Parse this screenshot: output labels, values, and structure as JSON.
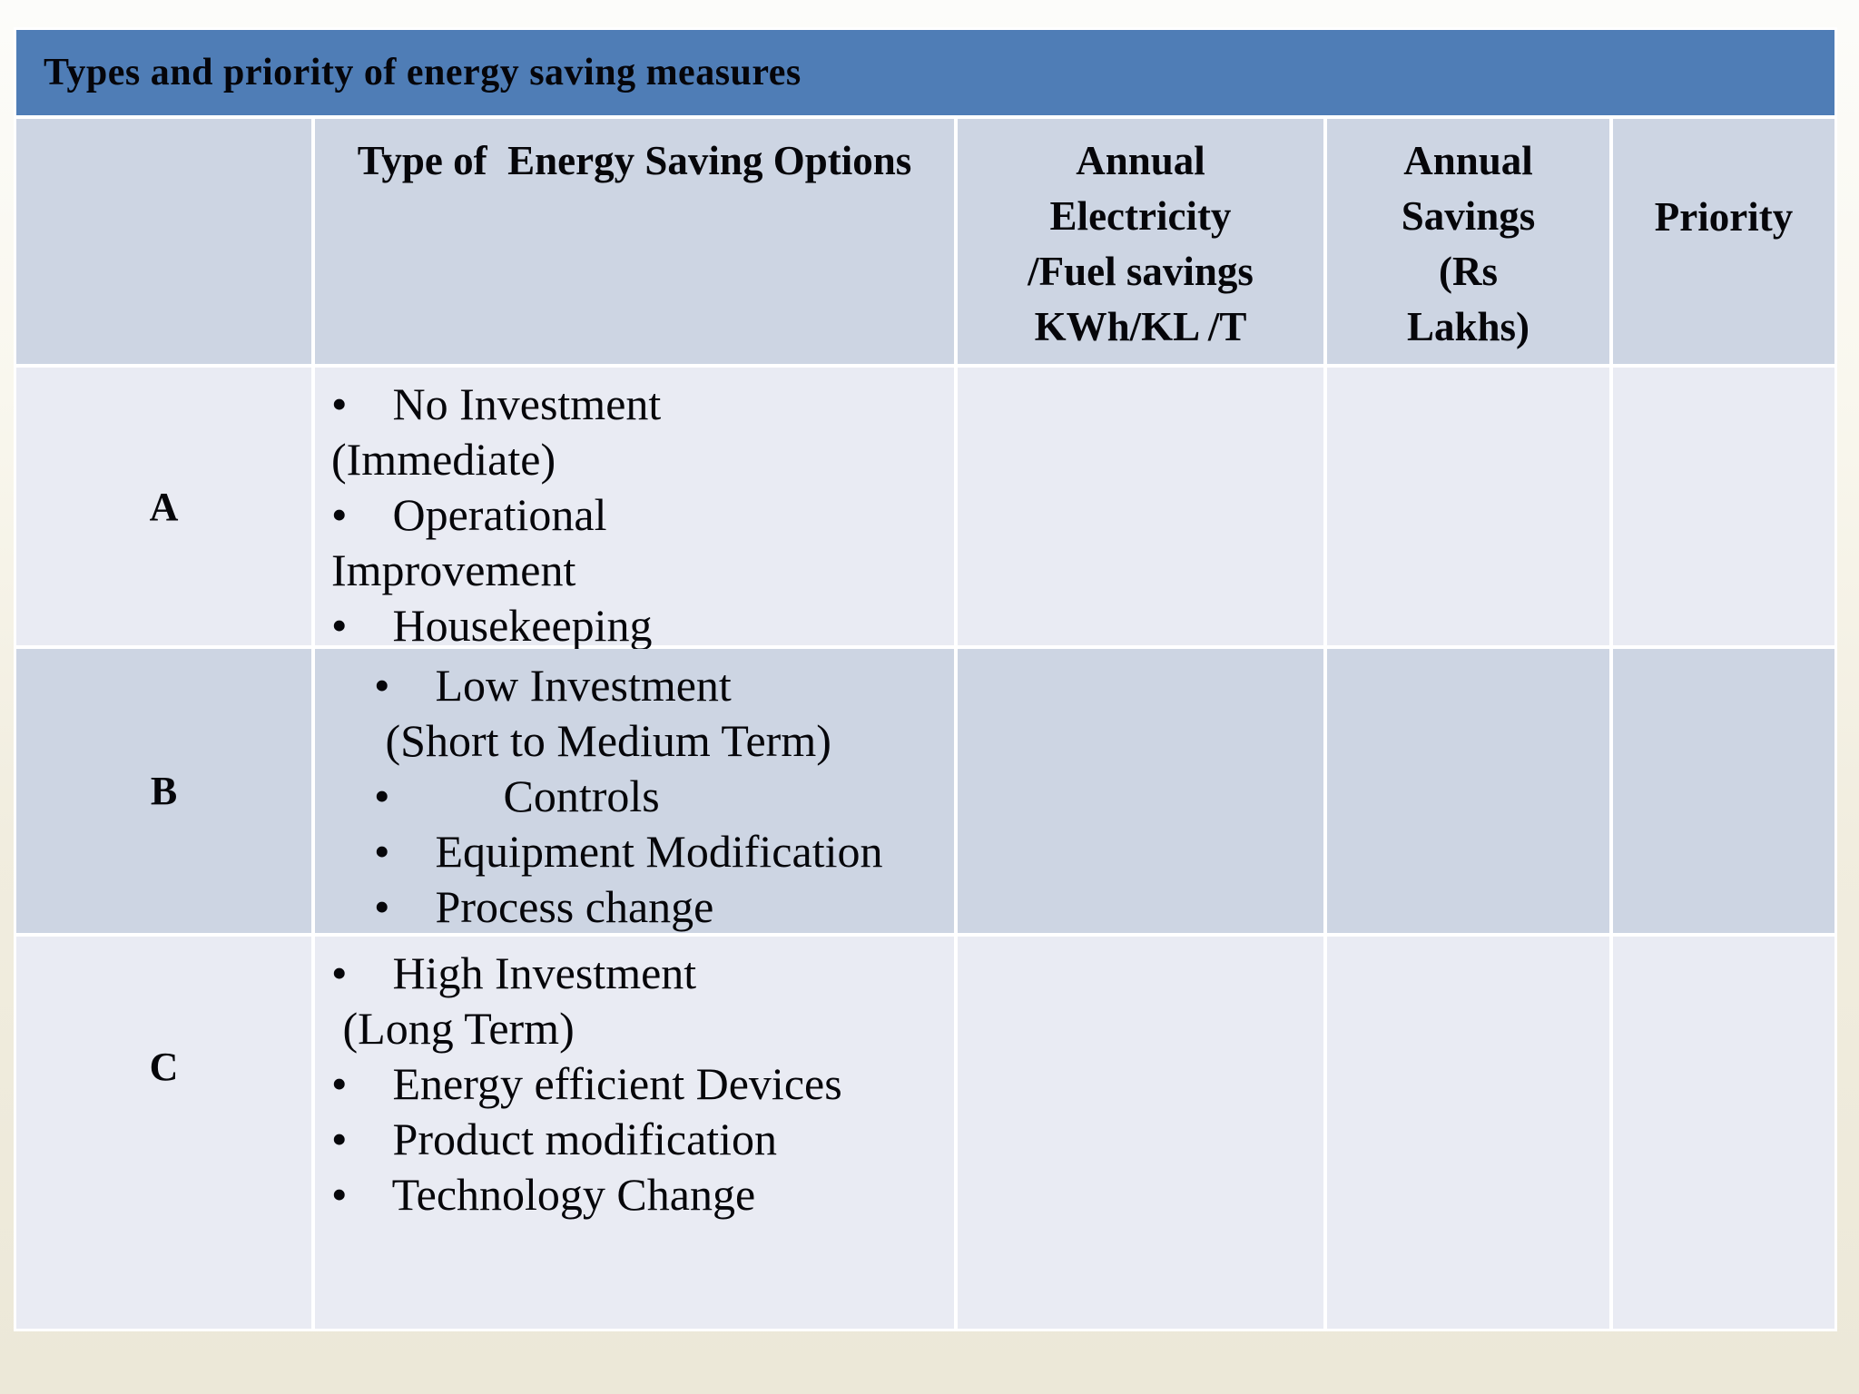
{
  "page": {
    "background_top_color": "#FBFBF9",
    "background_bottom_color": "#ECE8D8"
  },
  "title_bar": {
    "text": "Types and priority of energy saving measures",
    "background_color": "#4F7DB6"
  },
  "table": {
    "grid_line_color": "#FFFFFF",
    "header_bg_color": "#CDD5E3",
    "row_light_bg_color": "#E9EBF3",
    "row_dark_bg_color": "#CDD5E3",
    "headers": {
      "corner": "",
      "options": "Type of  Energy Saving Options",
      "electricity": "Annual\nElectricity\n/Fuel savings\nKWh/KL /T",
      "savings": "Annual\nSavings\n(Rs\nLakhs)",
      "priority": "Priority"
    },
    "rows": [
      {
        "label": "A",
        "options": "•    No Investment\n(Immediate)\n•    Operational\nImprovement\n•    Housekeeping",
        "electricity": "",
        "savings": "",
        "priority": ""
      },
      {
        "label": "B",
        "options": "•    Low Investment\n (Short to Medium Term)\n•          Controls\n•    Equipment Modification\n•    Process change",
        "electricity": "",
        "savings": "",
        "priority": ""
      },
      {
        "label": "C",
        "options": "•    High Investment\n (Long Term)\n•    Energy efficient Devices\n•    Product modification\n•    Technology Change",
        "electricity": "",
        "savings": "",
        "priority": ""
      }
    ]
  }
}
